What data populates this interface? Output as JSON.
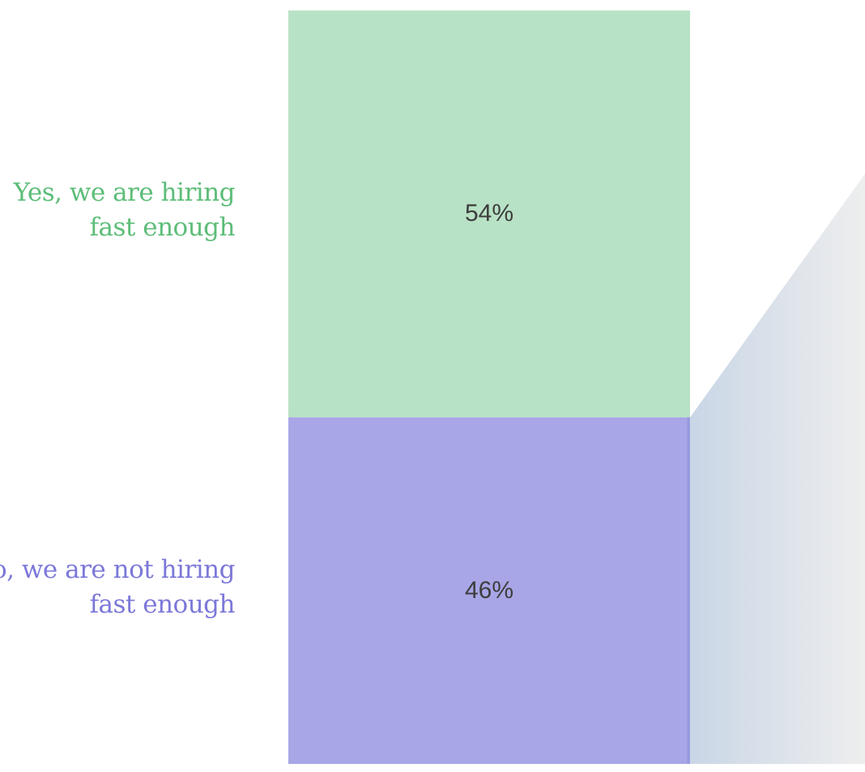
{
  "chart_data": {
    "type": "bar",
    "stacked": true,
    "categories": [
      {
        "line1": "Yes, we are hiring",
        "line2": "fast enough"
      },
      {
        "line1": "No, we are not hiring",
        "line2": "fast enough"
      }
    ],
    "values": [
      54,
      46
    ],
    "value_labels": [
      "54%",
      "46%"
    ],
    "colors": [
      "#b8e2c5",
      "#a8a6e6"
    ],
    "label_colors": [
      "#5dbd78",
      "#7c78d9"
    ],
    "callout_shading": "right"
  }
}
